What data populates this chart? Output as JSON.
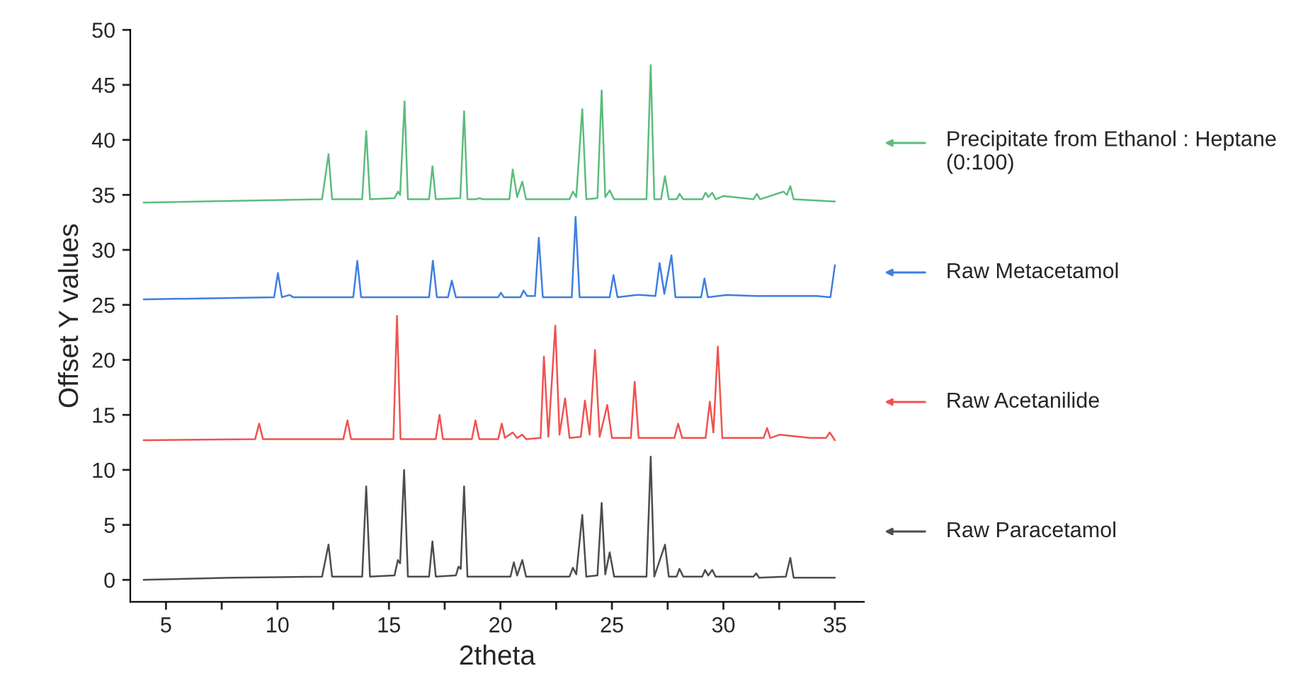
{
  "chart_data": {
    "type": "line",
    "xlabel": "2theta",
    "ylabel": "Offset Y values",
    "xlim": [
      3.4,
      36.3
    ],
    "ylim": [
      -2,
      50
    ],
    "xticks": [
      5,
      {
        "value": 7.5,
        "label": null
      },
      10,
      {
        "value": 12.5,
        "label": null
      },
      15,
      {
        "value": 17.5,
        "label": null
      },
      20,
      {
        "value": 22.5,
        "label": null
      },
      25,
      {
        "value": 27.5,
        "label": null
      },
      30,
      {
        "value": 32.5,
        "label": null
      },
      35
    ],
    "yticks": [
      0,
      5,
      10,
      15,
      20,
      25,
      30,
      35,
      40,
      45,
      50
    ],
    "grid": false,
    "legend": "right",
    "marker": "none",
    "line_style": "solid",
    "series": [
      {
        "name": "Precipitate from Ethanol : Heptane (0:100)",
        "color": "#5bbd7c",
        "x": [
          4,
          12.0,
          12.29,
          12.45,
          13.8,
          13.98,
          14.15,
          15.25,
          15.4,
          15.5,
          15.7,
          15.85,
          16.8,
          16.95,
          17.1,
          18.2,
          18.37,
          18.52,
          18.9,
          19.07,
          19.2,
          20.4,
          20.55,
          20.75,
          20.98,
          21.15,
          23.1,
          23.25,
          23.4,
          23.67,
          23.85,
          24.35,
          24.54,
          24.7,
          24.9,
          25.1,
          26.55,
          26.74,
          26.9,
          27.2,
          27.38,
          27.55,
          27.9,
          28.03,
          28.2,
          29.05,
          29.2,
          29.32,
          29.5,
          29.65,
          30.0,
          31.35,
          31.5,
          31.65,
          32.69,
          32.85,
          33.0,
          33.15,
          35
        ],
        "values": [
          34.3,
          34.6,
          38.7,
          34.6,
          34.6,
          40.8,
          34.6,
          34.7,
          35.3,
          35.0,
          43.5,
          34.6,
          34.6,
          37.6,
          34.6,
          34.7,
          42.6,
          34.6,
          34.6,
          34.7,
          34.6,
          34.6,
          37.3,
          34.8,
          36.2,
          34.6,
          34.6,
          35.3,
          34.8,
          42.8,
          34.6,
          34.7,
          44.5,
          34.8,
          35.4,
          34.6,
          34.6,
          46.8,
          34.6,
          34.6,
          36.7,
          34.6,
          34.6,
          35.1,
          34.6,
          34.6,
          35.2,
          34.8,
          35.2,
          34.6,
          34.9,
          34.6,
          35.1,
          34.6,
          35.3,
          35.0,
          35.8,
          34.6,
          34.4
        ]
      },
      {
        "name": "Raw Metacetamol",
        "color": "#3f7fe0",
        "x": [
          4,
          9.85,
          10.02,
          10.2,
          10.55,
          10.7,
          13.4,
          13.58,
          13.75,
          16.8,
          16.97,
          17.15,
          17.65,
          17.82,
          18.0,
          19.9,
          20.02,
          20.15,
          20.9,
          21.04,
          21.2,
          21.55,
          21.72,
          21.9,
          23.2,
          23.37,
          23.55,
          24.9,
          25.07,
          25.25,
          26.1,
          26.3,
          26.95,
          27.14,
          27.35,
          27.67,
          27.85,
          29.0,
          29.15,
          29.3,
          30.15,
          31.47,
          33.7,
          34.2,
          34.8,
          35
        ],
        "values": [
          25.5,
          25.7,
          27.9,
          25.7,
          25.9,
          25.7,
          25.7,
          29.0,
          25.7,
          25.7,
          29.0,
          25.7,
          25.7,
          27.2,
          25.7,
          25.7,
          26.1,
          25.7,
          25.7,
          26.3,
          25.8,
          25.8,
          31.1,
          25.7,
          25.7,
          33.0,
          25.7,
          25.7,
          27.7,
          25.7,
          25.9,
          25.9,
          25.8,
          28.8,
          26.0,
          29.5,
          25.7,
          25.7,
          27.4,
          25.7,
          25.9,
          25.8,
          25.8,
          25.8,
          25.7,
          28.6
        ]
      },
      {
        "name": "Raw Acetanilide",
        "color": "#ef5350",
        "x": [
          4,
          9.0,
          9.18,
          9.35,
          12.95,
          13.14,
          13.3,
          15.2,
          15.36,
          15.52,
          17.1,
          17.27,
          17.42,
          18.72,
          18.88,
          19.05,
          19.9,
          20.06,
          20.2,
          20.55,
          20.75,
          20.98,
          21.15,
          21.8,
          21.95,
          22.15,
          22.46,
          22.65,
          22.9,
          23.1,
          23.6,
          23.79,
          24.0,
          24.24,
          24.45,
          24.79,
          25.0,
          25.85,
          26.02,
          26.2,
          27.2,
          27.8,
          27.97,
          28.15,
          29.2,
          29.39,
          29.55,
          29.75,
          29.95,
          31.8,
          31.96,
          32.1,
          32.53,
          33.9,
          34.6,
          34.77,
          35
        ],
        "values": [
          12.7,
          12.8,
          14.2,
          12.8,
          12.8,
          14.5,
          12.8,
          12.8,
          24.0,
          12.8,
          12.8,
          15.0,
          12.8,
          12.8,
          14.5,
          12.8,
          12.8,
          14.2,
          12.9,
          13.4,
          12.9,
          13.2,
          12.8,
          12.9,
          20.3,
          13.0,
          23.1,
          13.2,
          16.5,
          12.9,
          13.0,
          16.3,
          13.2,
          20.9,
          13.0,
          15.9,
          12.9,
          12.9,
          18.0,
          12.9,
          12.9,
          12.9,
          14.2,
          12.9,
          12.9,
          16.2,
          13.4,
          21.2,
          12.9,
          12.9,
          13.8,
          12.9,
          13.2,
          12.9,
          12.9,
          13.4,
          12.7
        ]
      },
      {
        "name": "Raw Paracetamol",
        "color": "#4d4d4d",
        "x": [
          4,
          8,
          12.0,
          12.29,
          12.45,
          13.8,
          13.98,
          14.15,
          15.25,
          15.4,
          15.5,
          15.68,
          15.85,
          16.8,
          16.95,
          17.1,
          18.0,
          18.12,
          18.22,
          18.37,
          18.52,
          20.45,
          20.6,
          20.75,
          20.98,
          21.15,
          23.1,
          23.25,
          23.4,
          23.67,
          23.85,
          24.35,
          24.54,
          24.7,
          24.9,
          25.1,
          26.55,
          26.74,
          26.9,
          27.38,
          27.55,
          27.9,
          28.03,
          28.2,
          29.05,
          29.18,
          29.32,
          29.5,
          29.65,
          31.35,
          31.47,
          31.6,
          32.8,
          33.0,
          33.15,
          35
        ],
        "values": [
          0,
          0.2,
          0.3,
          3.2,
          0.3,
          0.3,
          8.5,
          0.3,
          0.4,
          1.8,
          1.5,
          10.0,
          0.3,
          0.3,
          3.5,
          0.3,
          0.4,
          1.2,
          1.0,
          8.5,
          0.3,
          0.3,
          1.6,
          0.4,
          1.8,
          0.3,
          0.3,
          1.1,
          0.5,
          5.9,
          0.3,
          0.4,
          7.0,
          0.5,
          2.5,
          0.3,
          0.3,
          11.2,
          0.3,
          3.2,
          0.3,
          0.3,
          1.0,
          0.3,
          0.3,
          0.9,
          0.4,
          0.9,
          0.3,
          0.3,
          0.6,
          0.2,
          0.3,
          2.0,
          0.2,
          0.2
        ]
      }
    ]
  }
}
